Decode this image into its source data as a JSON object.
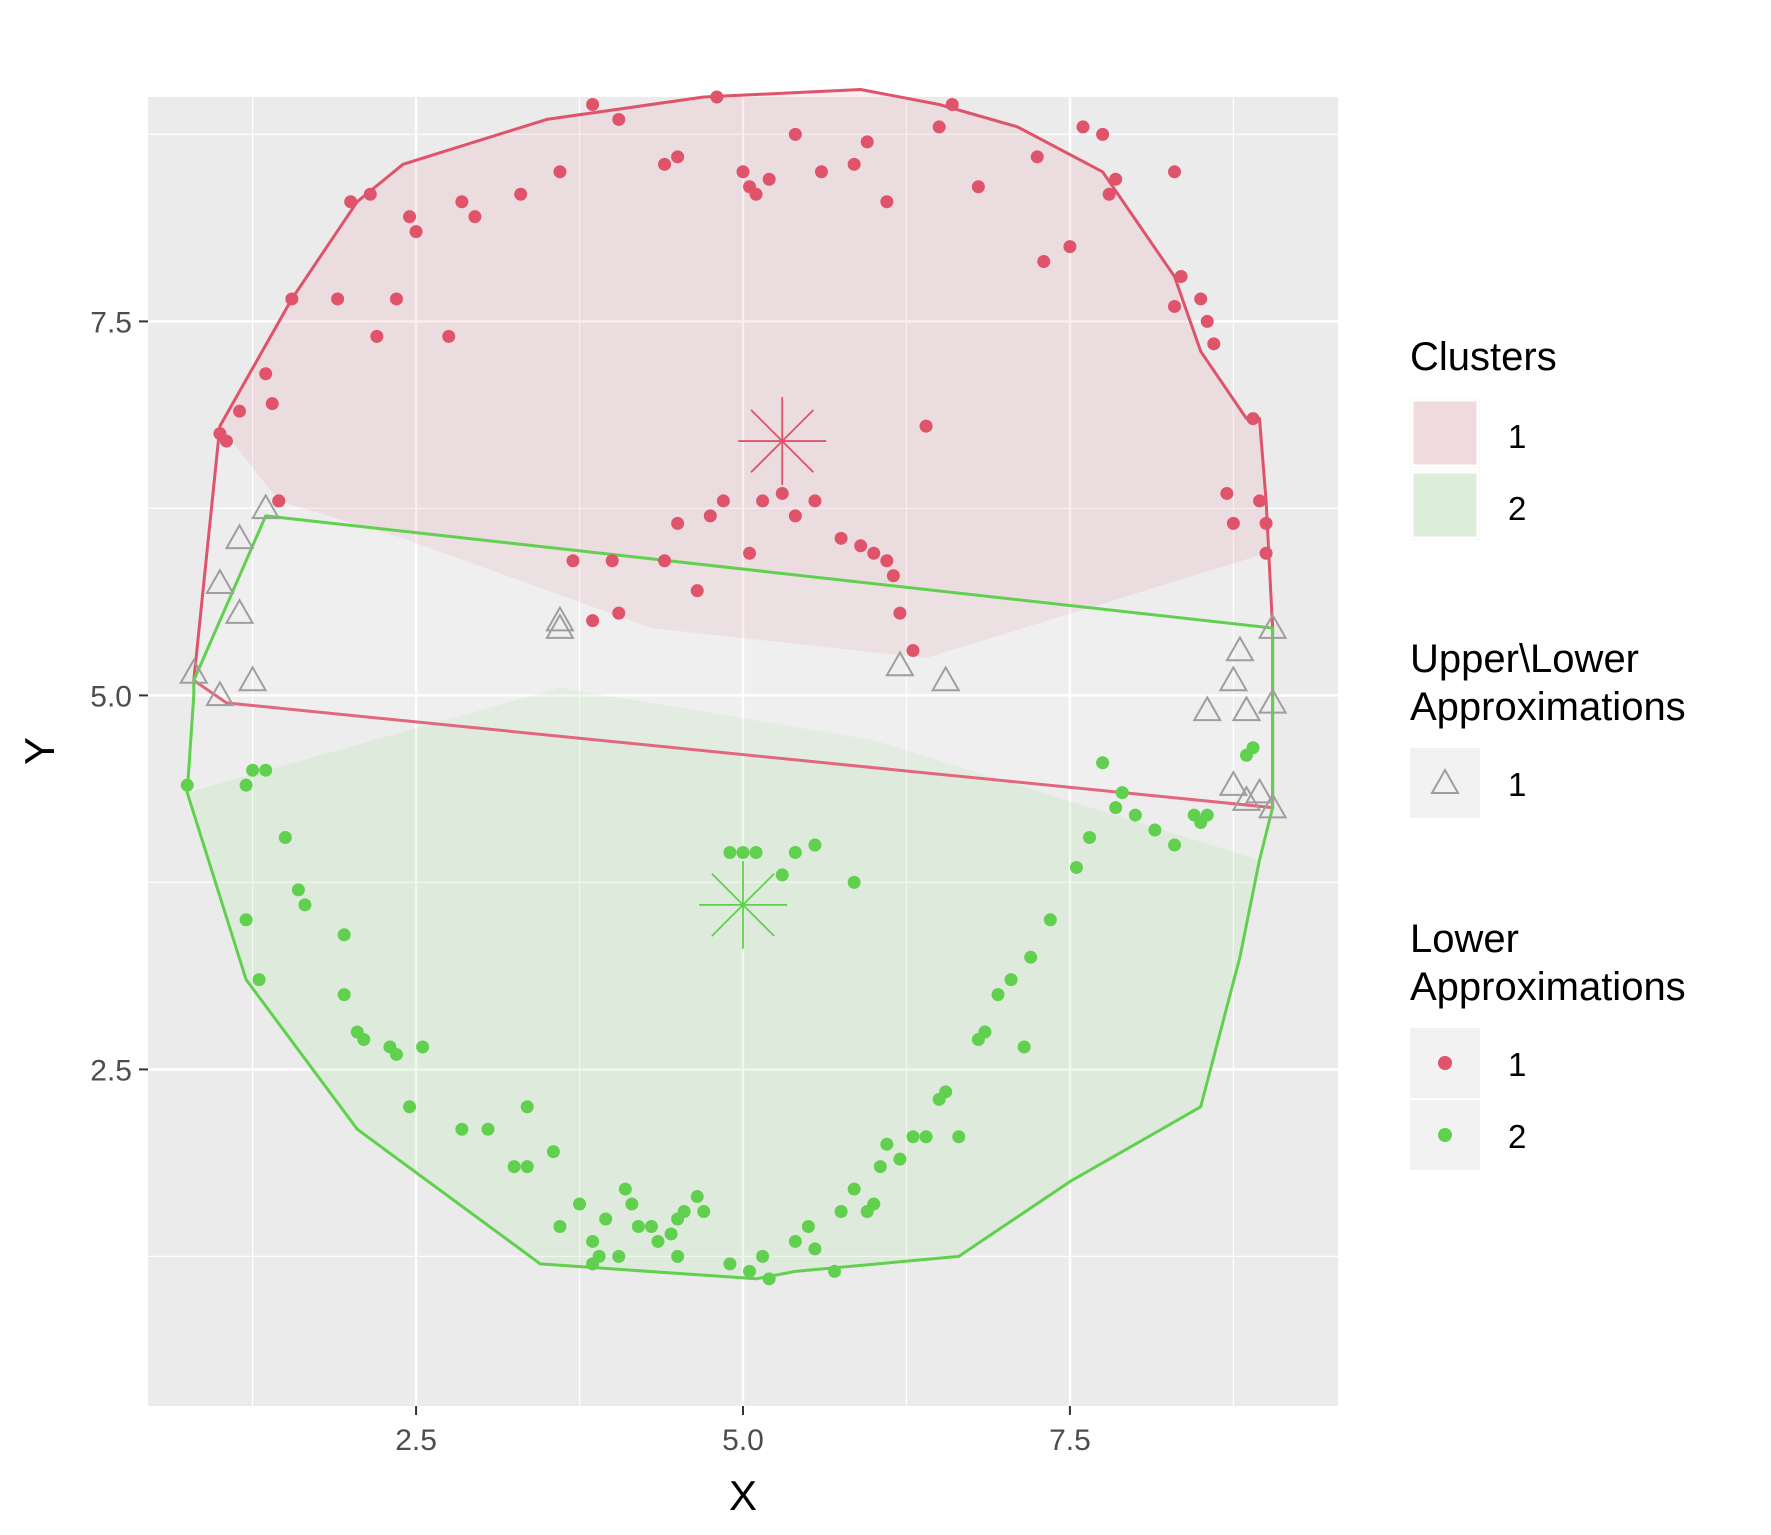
{
  "chart_data": {
    "type": "scatter",
    "xlabel": "X",
    "ylabel": "Y",
    "xlim": [
      0.45,
      9.55
    ],
    "ylim": [
      0.25,
      9.0
    ],
    "x_ticks": [
      2.5,
      5.0,
      7.5
    ],
    "y_ticks": [
      2.5,
      5.0,
      7.5
    ],
    "x_tick_labels": [
      "2.5",
      "5.0",
      "7.5"
    ],
    "y_tick_labels": [
      "2.5",
      "5.0",
      "7.5"
    ],
    "grid": true,
    "legend_position": "right",
    "colors": {
      "cluster1": "#DF536B",
      "cluster2": "#61D04F",
      "boundary": "#9E9E9E",
      "panel": "#EBEBEB"
    },
    "legend": {
      "clusters": {
        "title": "Clusters",
        "items": [
          "1",
          "2"
        ]
      },
      "upper_lower": {
        "title_line1": "Upper\\Lower",
        "title_line2": "Approximations",
        "items": [
          "1"
        ]
      },
      "lower": {
        "title_line1": "Lower",
        "title_line2": "Approximations",
        "items": [
          "1",
          "2"
        ]
      }
    },
    "centers": [
      {
        "cluster": "1",
        "x": 5.3,
        "y": 6.7
      },
      {
        "cluster": "2",
        "x": 5.0,
        "y": 3.6
      }
    ],
    "hulls": {
      "cluster1": [
        [
          0.8,
          5.1
        ],
        [
          1.0,
          6.8
        ],
        [
          1.55,
          7.65
        ],
        [
          2.05,
          8.3
        ],
        [
          2.4,
          8.55
        ],
        [
          3.5,
          8.85
        ],
        [
          4.7,
          9.0
        ],
        [
          5.9,
          9.05
        ],
        [
          6.5,
          8.95
        ],
        [
          7.1,
          8.8
        ],
        [
          7.75,
          8.5
        ],
        [
          8.3,
          7.8
        ],
        [
          8.5,
          7.3
        ],
        [
          8.85,
          6.85
        ],
        [
          8.95,
          6.85
        ],
        [
          9.0,
          6.3
        ],
        [
          9.05,
          5.45
        ],
        [
          9.05,
          4.25
        ],
        [
          1.05,
          4.95
        ]
      ],
      "cluster2": [
        [
          0.8,
          5.1
        ],
        [
          1.35,
          6.2
        ],
        [
          9.05,
          5.45
        ],
        [
          9.05,
          4.25
        ],
        [
          8.95,
          3.9
        ],
        [
          8.8,
          3.25
        ],
        [
          8.5,
          2.25
        ],
        [
          7.5,
          1.75
        ],
        [
          6.65,
          1.25
        ],
        [
          5.4,
          1.15
        ],
        [
          5.1,
          1.1
        ],
        [
          3.45,
          1.2
        ],
        [
          2.05,
          2.1
        ],
        [
          1.2,
          3.1
        ],
        [
          0.75,
          4.35
        ],
        [
          0.8,
          5.0
        ]
      ]
    },
    "lower_shading": {
      "cluster1": [
        [
          1.0,
          6.8
        ],
        [
          1.55,
          7.65
        ],
        [
          2.05,
          8.3
        ],
        [
          2.4,
          8.55
        ],
        [
          3.5,
          8.85
        ],
        [
          4.7,
          9.0
        ],
        [
          5.9,
          9.05
        ],
        [
          6.5,
          8.95
        ],
        [
          7.1,
          8.8
        ],
        [
          7.75,
          8.5
        ],
        [
          8.3,
          7.8
        ],
        [
          8.5,
          7.3
        ],
        [
          8.85,
          6.85
        ],
        [
          8.95,
          6.85
        ],
        [
          9.0,
          6.3
        ],
        [
          9.0,
          5.95
        ],
        [
          6.4,
          5.25
        ],
        [
          4.3,
          5.45
        ],
        [
          2.4,
          6.05
        ],
        [
          1.45,
          6.3
        ]
      ],
      "cluster2": [
        [
          0.75,
          4.35
        ],
        [
          3.6,
          5.05
        ],
        [
          6.0,
          4.7
        ],
        [
          8.95,
          3.9
        ],
        [
          8.8,
          3.25
        ],
        [
          8.5,
          2.25
        ],
        [
          7.5,
          1.75
        ],
        [
          6.65,
          1.25
        ],
        [
          5.4,
          1.15
        ],
        [
          5.1,
          1.1
        ],
        [
          3.45,
          1.2
        ],
        [
          2.05,
          2.1
        ],
        [
          1.2,
          3.1
        ]
      ]
    },
    "series": [
      {
        "name": "1",
        "group": "lower",
        "x": [
          1.0,
          1.05,
          1.15,
          1.35,
          1.4,
          1.45,
          1.55,
          1.9,
          2.0,
          2.15,
          2.2,
          2.35,
          2.45,
          2.5,
          2.75,
          2.85,
          2.95,
          3.3,
          3.6,
          3.85,
          4.05,
          4.4,
          4.5,
          4.8,
          5.0,
          5.05,
          5.1,
          5.2,
          5.4,
          5.6,
          5.85,
          5.95,
          6.1,
          6.5,
          6.6,
          6.8,
          7.25,
          7.3,
          7.5,
          7.6,
          7.75,
          7.8,
          7.85,
          8.3,
          8.3,
          8.35,
          8.5,
          8.55,
          8.6,
          8.7,
          8.75,
          8.9,
          8.95,
          9.0,
          9.0,
          1.45,
          3.7,
          4.0,
          4.05,
          3.85,
          4.5,
          4.4,
          4.65,
          4.75,
          4.85,
          5.05,
          5.15,
          5.3,
          5.55,
          5.4,
          5.75,
          5.9,
          6.0,
          6.1,
          6.15,
          6.2,
          6.3,
          6.4
        ],
        "y": [
          6.75,
          6.7,
          6.9,
          7.15,
          6.95,
          6.3,
          7.65,
          7.65,
          8.3,
          8.35,
          7.4,
          7.65,
          8.2,
          8.1,
          7.4,
          8.3,
          8.2,
          8.35,
          8.5,
          8.95,
          8.85,
          8.55,
          8.6,
          9.0,
          8.5,
          8.4,
          8.35,
          8.45,
          8.75,
          8.5,
          8.55,
          8.7,
          8.3,
          8.8,
          8.95,
          8.4,
          8.6,
          7.9,
          8.0,
          8.8,
          8.75,
          8.35,
          8.45,
          8.5,
          7.6,
          7.8,
          7.65,
          7.5,
          7.35,
          6.35,
          6.15,
          6.85,
          6.3,
          6.15,
          5.95,
          6.3,
          5.9,
          5.9,
          5.55,
          5.5,
          6.15,
          5.9,
          5.7,
          6.2,
          6.3,
          5.95,
          6.3,
          6.35,
          6.3,
          6.2,
          6.05,
          6.0,
          5.95,
          5.9,
          5.8,
          5.55,
          5.3,
          6.8
        ],
        "color": "#DF536B"
      },
      {
        "name": "2",
        "group": "lower",
        "x": [
          0.75,
          1.2,
          1.2,
          1.3,
          1.25,
          1.35,
          1.5,
          1.6,
          1.65,
          1.95,
          1.95,
          2.05,
          2.1,
          2.3,
          2.35,
          2.45,
          2.55,
          2.85,
          3.05,
          3.25,
          3.35,
          3.35,
          3.55,
          3.6,
          3.75,
          3.85,
          3.85,
          3.9,
          3.95,
          4.05,
          4.1,
          4.15,
          4.2,
          4.3,
          4.35,
          4.45,
          4.5,
          4.5,
          4.55,
          4.65,
          4.7,
          4.9,
          5.05,
          5.15,
          5.2,
          5.4,
          5.5,
          5.55,
          5.7,
          5.75,
          5.85,
          5.95,
          6.0,
          6.05,
          6.1,
          6.2,
          6.3,
          6.4,
          6.5,
          6.55,
          6.65,
          6.8,
          6.85,
          6.95,
          7.05,
          7.15,
          7.2,
          7.35,
          7.55,
          7.65,
          7.75,
          7.85,
          7.9,
          8.0,
          8.15,
          8.3,
          8.45,
          8.5,
          8.55,
          8.85,
          8.9,
          4.9,
          5.0,
          5.1,
          5.3,
          5.4,
          5.55,
          5.85
        ],
        "y": [
          4.4,
          4.4,
          3.5,
          3.1,
          4.5,
          4.5,
          4.05,
          3.7,
          3.6,
          3.4,
          3.0,
          2.75,
          2.7,
          2.65,
          2.6,
          2.25,
          2.65,
          2.1,
          2.1,
          1.85,
          1.85,
          2.25,
          1.95,
          1.45,
          1.6,
          1.35,
          1.2,
          1.25,
          1.5,
          1.25,
          1.7,
          1.6,
          1.45,
          1.45,
          1.35,
          1.4,
          1.5,
          1.25,
          1.55,
          1.65,
          1.55,
          1.2,
          1.15,
          1.25,
          1.1,
          1.35,
          1.45,
          1.3,
          1.15,
          1.55,
          1.7,
          1.55,
          1.6,
          1.85,
          2.0,
          1.9,
          2.05,
          2.05,
          2.3,
          2.35,
          2.05,
          2.7,
          2.75,
          3.0,
          3.1,
          2.65,
          3.25,
          3.5,
          3.85,
          4.05,
          4.55,
          4.25,
          4.35,
          4.2,
          4.1,
          4.0,
          4.2,
          4.15,
          4.2,
          4.6,
          4.65,
          3.95,
          3.95,
          3.95,
          3.8,
          3.95,
          4.0,
          3.75
        ],
        "color": "#61D04F"
      },
      {
        "name": "1",
        "group": "upper-lower",
        "x": [
          0.8,
          1.0,
          1.0,
          1.15,
          1.15,
          1.25,
          1.35,
          3.6,
          3.6,
          6.2,
          6.55,
          8.55,
          8.75,
          8.85,
          8.75,
          8.85,
          8.8,
          8.95,
          9.05,
          9.05,
          9.05
        ],
        "y": [
          5.15,
          5.0,
          5.75,
          5.55,
          6.05,
          5.1,
          6.25,
          5.45,
          5.5,
          5.2,
          5.1,
          4.9,
          5.1,
          4.9,
          4.4,
          4.3,
          5.3,
          4.35,
          4.25,
          4.95,
          5.45
        ],
        "color": "#9E9E9E"
      }
    ]
  }
}
